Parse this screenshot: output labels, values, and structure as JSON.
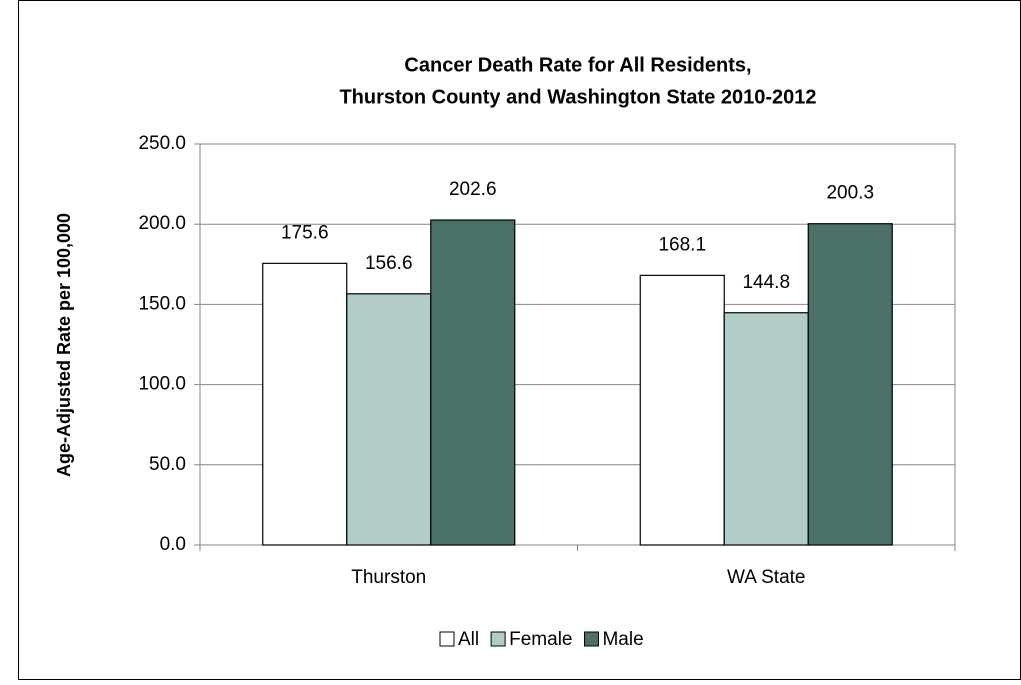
{
  "chart_data": {
    "type": "bar",
    "title": [
      "Cancer Death Rate for All Residents,",
      "Thurston County and Washington State 2010-2012"
    ],
    "y_label": "Age-Adjusted Rate per 100,000",
    "categories": [
      "Thurston",
      "WA State"
    ],
    "series": [
      {
        "name": "All",
        "color": "#ffffff",
        "values": [
          175.6,
          168.1
        ]
      },
      {
        "name": "Female",
        "color": "#b2cdc8",
        "values": [
          156.6,
          144.8
        ]
      },
      {
        "name": "Male",
        "color": "#4a7068",
        "values": [
          202.6,
          200.3
        ]
      }
    ],
    "ylim": [
      0,
      250
    ],
    "yticks": [
      {
        "value": 0,
        "label": "0.0"
      },
      {
        "value": 50,
        "label": "50.0"
      },
      {
        "value": 100,
        "label": "100.0"
      },
      {
        "value": 150,
        "label": "150.0"
      },
      {
        "value": 200,
        "label": "200.0"
      },
      {
        "value": 250,
        "label": "250.0"
      }
    ],
    "grid": true,
    "legend": "bottom"
  }
}
